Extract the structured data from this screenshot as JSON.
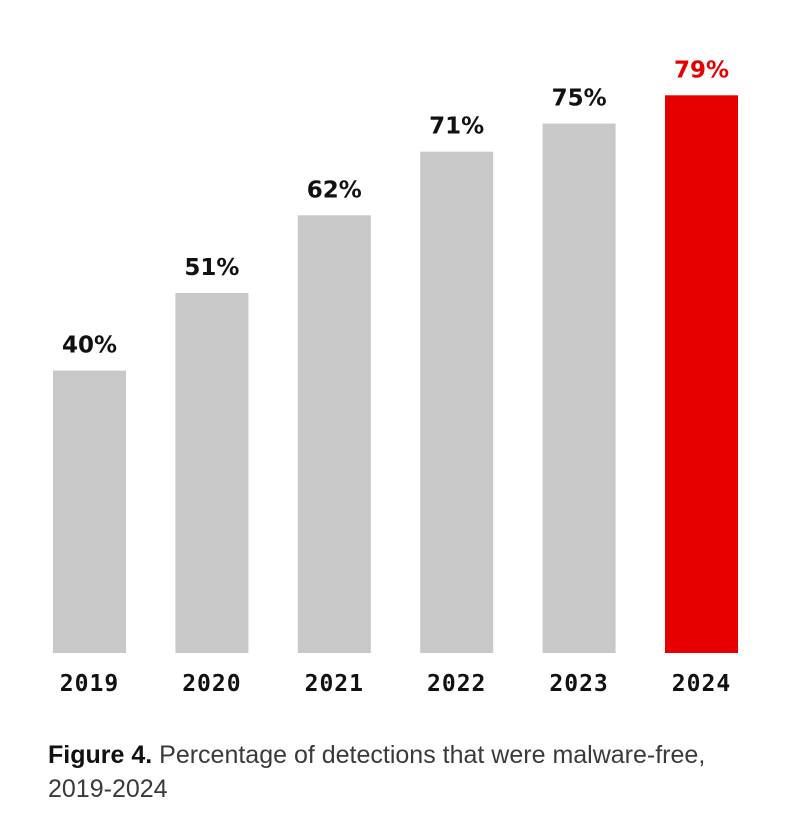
{
  "chart_data": {
    "type": "bar",
    "categories": [
      "2019",
      "2020",
      "2021",
      "2022",
      "2023",
      "2024"
    ],
    "values": [
      40,
      51,
      62,
      71,
      75,
      79
    ],
    "value_labels": [
      "40%",
      "51%",
      "62%",
      "71%",
      "75%",
      "79%"
    ],
    "highlight_index": 5,
    "ylim": [
      0,
      100
    ],
    "grid": false,
    "xlabel": "",
    "ylabel": "",
    "title": ""
  },
  "colors": {
    "bar": "#c8c8c8",
    "highlight": "#e60000",
    "label": "#111111",
    "highlight_label": "#e60000"
  },
  "caption": {
    "figure_label": "Figure 4.",
    "text": "Percentage of detections that were malware-free, 2019-2024"
  }
}
